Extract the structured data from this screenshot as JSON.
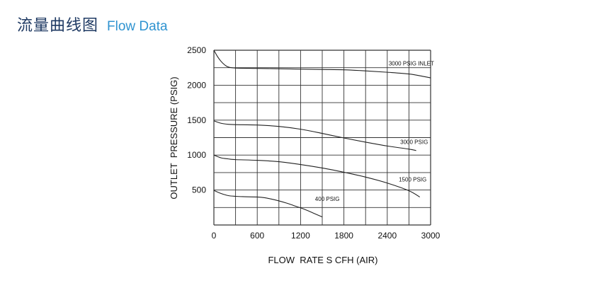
{
  "header": {
    "title_cn": "流量曲线图",
    "title_en": "Flow Data"
  },
  "colors": {
    "title_cn": "#1f3a63",
    "title_en": "#2f93d0",
    "lines": "#222222"
  },
  "chart_data": {
    "type": "line",
    "title": "",
    "xlabel": "FLOW  RATE S CFH (AIR)",
    "ylabel": "OUTLET  PRESSURE (PSIG)",
    "xlim": [
      0,
      3000
    ],
    "ylim": [
      0,
      2500
    ],
    "x_ticks": [
      0,
      600,
      1200,
      1800,
      2400,
      3000
    ],
    "y_ticks": [
      500,
      1000,
      1500,
      2000,
      2500
    ],
    "grid": true,
    "legend": "none",
    "series": [
      {
        "name": "3000 PSIG INLET",
        "x": [
          0,
          50,
          100,
          150,
          200,
          300,
          600,
          900,
          1200,
          1500,
          1800,
          2100,
          2400,
          2700,
          2900,
          3000
        ],
        "y": [
          2500,
          2410,
          2340,
          2290,
          2260,
          2245,
          2240,
          2235,
          2230,
          2225,
          2220,
          2205,
          2185,
          2160,
          2125,
          2105
        ]
      },
      {
        "name": "3000 PSIG",
        "x": [
          0,
          100,
          200,
          300,
          600,
          900,
          1200,
          1500,
          1800,
          2100,
          2400,
          2700,
          2800
        ],
        "y": [
          1490,
          1455,
          1440,
          1435,
          1430,
          1410,
          1370,
          1310,
          1245,
          1185,
          1130,
          1085,
          1065
        ]
      },
      {
        "name": "1500  PSIG",
        "x": [
          0,
          100,
          200,
          300,
          600,
          900,
          1200,
          1500,
          1800,
          2100,
          2400,
          2700,
          2850
        ],
        "y": [
          1000,
          960,
          945,
          935,
          925,
          905,
          865,
          815,
          755,
          685,
          600,
          490,
          400
        ]
      },
      {
        "name": "400  PSIG",
        "x": [
          0,
          100,
          200,
          300,
          400,
          600,
          700,
          800,
          900,
          1000,
          1100,
          1200,
          1300,
          1400,
          1500
        ],
        "y": [
          495,
          450,
          420,
          410,
          405,
          400,
          390,
          370,
          345,
          315,
          280,
          245,
          205,
          160,
          115
        ]
      }
    ],
    "series_labels": [
      "3000 PSIG INLET",
      "3000 PSIG",
      "1500  PSIG",
      "400  PSIG"
    ]
  }
}
